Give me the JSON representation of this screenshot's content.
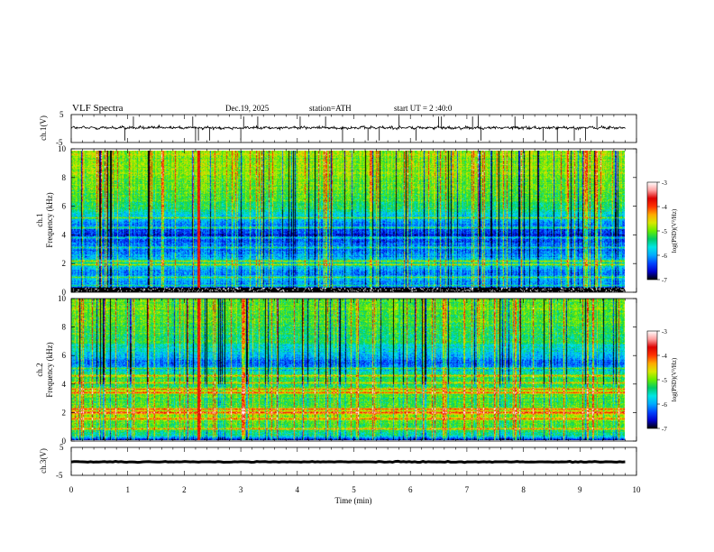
{
  "header": {
    "title": "VLF  Spectra",
    "date": "Dec.19, 2025",
    "station": "station=ATH",
    "start_ut": "start  UT  =   2  :40:0"
  },
  "chart_data": [
    {
      "type": "line",
      "name": "ch1-waveform",
      "ylabel": "ch.1(V)",
      "ylim": [
        -5,
        5
      ],
      "yticks": [
        "5",
        "-5"
      ],
      "xlim": [
        0,
        10
      ],
      "x_end_min": 9.8,
      "baseline_v": 0.3,
      "noise_amplitude_v": 1.0,
      "spike_times_min": [
        0.95,
        1.1,
        2.15,
        2.2,
        2.25,
        2.45,
        3.0,
        3.05,
        3.3,
        4.05,
        4.5,
        4.8,
        5.25,
        5.45,
        5.8,
        6.1,
        6.5,
        6.55,
        7.1,
        7.2,
        7.25,
        7.85,
        8.35,
        8.6,
        8.9,
        9.1,
        9.3
      ]
    },
    {
      "type": "heatmap",
      "name": "ch1-spectrogram",
      "ylabel": "ch.1\nFrequency  (kHz)",
      "yticks": [
        "0",
        "2",
        "4",
        "6",
        "8",
        "10"
      ],
      "ylim": [
        0,
        10
      ],
      "xlim": [
        0,
        10
      ],
      "x_end_min": 9.8,
      "log_psd_range": [
        -7,
        -3
      ],
      "colorbar_label": "log(PSD)(V²/Hz)",
      "colorbar_ticks": [
        "-3",
        "-4",
        "-5",
        "-6",
        "-7"
      ],
      "freq_profile_khz": [
        0,
        0.3,
        0.6,
        1.0,
        1.5,
        2.0,
        2.5,
        3.0,
        3.5,
        4.0,
        4.5,
        5.0,
        5.5,
        6.0,
        7.0,
        8.0,
        9.0,
        10.0
      ],
      "freq_profile_logpsd": [
        -7.0,
        -6.4,
        -6.1,
        -5.9,
        -6.2,
        -5.5,
        -5.9,
        -6.3,
        -6.2,
        -6.5,
        -6.3,
        -6.0,
        -5.7,
        -5.3,
        -5.1,
        -5.0,
        -4.9,
        -4.9
      ],
      "lines_khz": [
        0.5,
        1.1,
        2.0,
        2.2,
        3.2,
        3.9,
        4.6,
        5.3
      ],
      "bright_times_min": [
        2.25
      ],
      "gap_khz": [
        0.05,
        0.35
      ]
    },
    {
      "type": "heatmap",
      "name": "ch2-spectrogram",
      "ylabel": "ch.2\nFrequency  (kHz)",
      "yticks": [
        "0",
        "2",
        "4",
        "6",
        "8",
        "10"
      ],
      "ylim": [
        0,
        10
      ],
      "xlim": [
        0,
        10
      ],
      "x_end_min": 9.8,
      "log_psd_range": [
        -7,
        -3
      ],
      "colorbar_label": "log(PSD)(V²/Hz)",
      "colorbar_ticks": [
        "-3",
        "-4",
        "-5",
        "-6",
        "-7"
      ],
      "freq_profile_khz": [
        0,
        0.3,
        0.8,
        1.5,
        2.0,
        2.5,
        3.0,
        3.5,
        4.0,
        4.5,
        5.0,
        5.5,
        6.0,
        7.0,
        8.0,
        9.0,
        10.0
      ],
      "freq_profile_logpsd": [
        -6.8,
        -5.6,
        -5.2,
        -5.0,
        -4.6,
        -5.1,
        -5.2,
        -4.9,
        -5.4,
        -5.2,
        -5.9,
        -6.2,
        -5.9,
        -5.4,
        -5.2,
        -5.1,
        -5.0
      ],
      "lines_khz": [
        0.8,
        1.5,
        2.0,
        2.2,
        3.4,
        3.6,
        4.1,
        4.6,
        5.1
      ],
      "bright_times_min": [
        2.25
      ],
      "gap_khz": []
    },
    {
      "type": "line",
      "name": "ch3-waveform",
      "ylabel": "ch.3(V)",
      "ylim": [
        -5,
        5
      ],
      "yticks": [
        "5",
        "-5"
      ],
      "xlim": [
        0,
        10
      ],
      "x_end_min": 9.8,
      "baseline_v": -0.2,
      "noise_amplitude_v": 0.15
    }
  ],
  "xaxis": {
    "label": "Time  (min)",
    "ticks": [
      "0",
      "1",
      "2",
      "3",
      "4",
      "5",
      "6",
      "7",
      "8",
      "9",
      "10"
    ]
  },
  "colors": {
    "colormap": [
      "#000000",
      "#0000cc",
      "#0044ff",
      "#00aaff",
      "#00e5e5",
      "#00cc66",
      "#66ee00",
      "#d8e800",
      "#ffaa00",
      "#ff3300",
      "#dd0000",
      "#ffa0a0",
      "#ffffff"
    ]
  }
}
